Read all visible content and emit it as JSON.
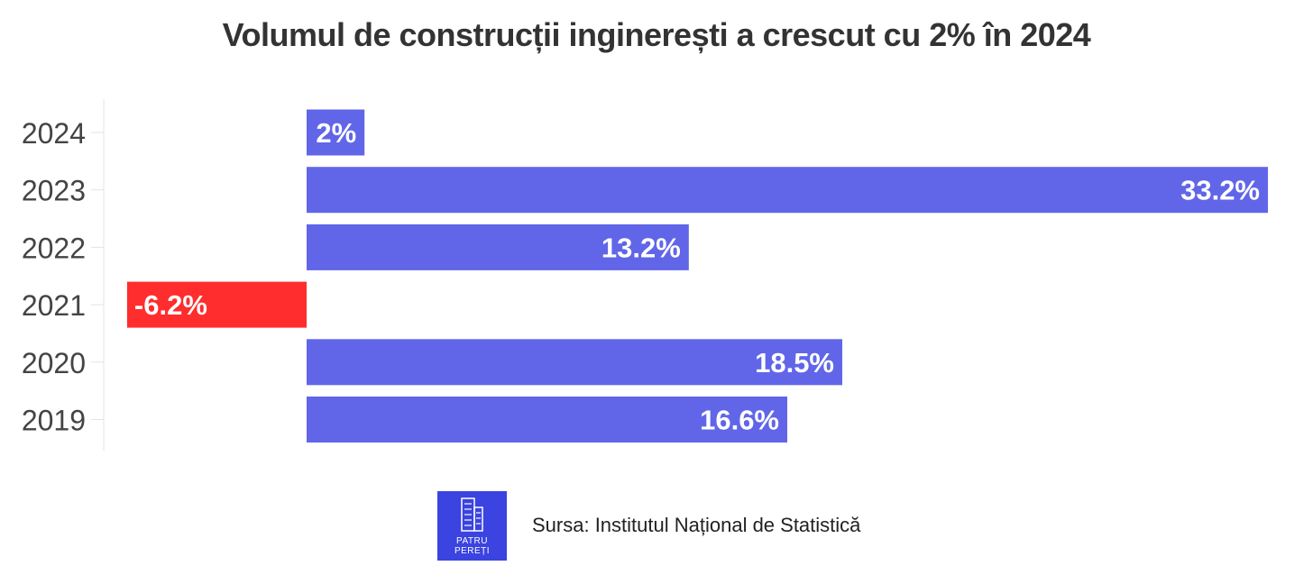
{
  "colors": {
    "positive": "#6166e8",
    "negative": "#ff2d2d",
    "logo_bg": "#3b43e0"
  },
  "chart_data": {
    "type": "bar",
    "orientation": "horizontal",
    "title": "Volumul de construcții inginerești a crescut cu 2% în 2024",
    "categories": [
      "2024",
      "2023",
      "2022",
      "2021",
      "2020",
      "2019"
    ],
    "values": [
      2,
      33.2,
      13.2,
      -6.2,
      18.5,
      16.6
    ],
    "value_labels": [
      "2%",
      "33.2%",
      "13.2%",
      "-6.2%",
      "18.5%",
      "16.6%"
    ],
    "xlim": [
      -7,
      33.2
    ],
    "grid": false,
    "legend": "none"
  },
  "footer": {
    "logo_line1": "PATRU",
    "logo_line2": "PEREȚI",
    "logo_icon": "building-icon",
    "source": "Sursa: Institutul Național de Statistică"
  }
}
